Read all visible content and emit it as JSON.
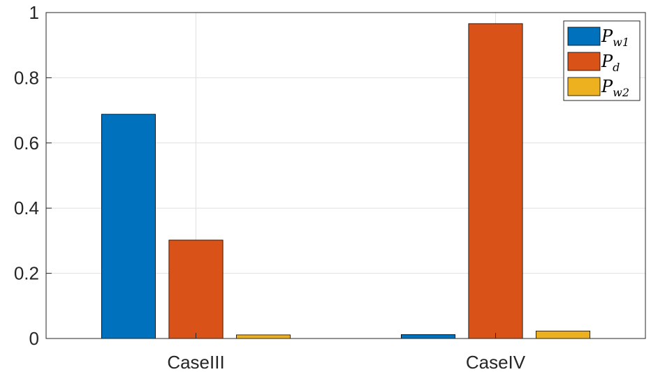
{
  "chart_data": {
    "type": "bar",
    "categories": [
      "CaseIII",
      "CaseIV"
    ],
    "series": [
      {
        "name": "P_w1",
        "legend_main": "P",
        "legend_sub": "w1",
        "color": "#0072BD",
        "values": [
          0.688,
          0.012
        ]
      },
      {
        "name": "P_d",
        "legend_main": "P",
        "legend_sub": "d",
        "color": "#D95319",
        "values": [
          0.302,
          0.966
        ]
      },
      {
        "name": "P_w2",
        "legend_main": "P",
        "legend_sub": "w2",
        "color": "#EDB120",
        "values": [
          0.011,
          0.023
        ]
      }
    ],
    "ylim": [
      0,
      1
    ],
    "yticks": [
      0,
      0.2,
      0.4,
      0.6,
      0.8,
      1
    ],
    "ytick_labels": [
      "0",
      "0.2",
      "0.4",
      "0.6",
      "0.8",
      "1"
    ],
    "grid": true,
    "legend_position": "top-right",
    "xlabel": "",
    "ylabel": "",
    "title": ""
  }
}
